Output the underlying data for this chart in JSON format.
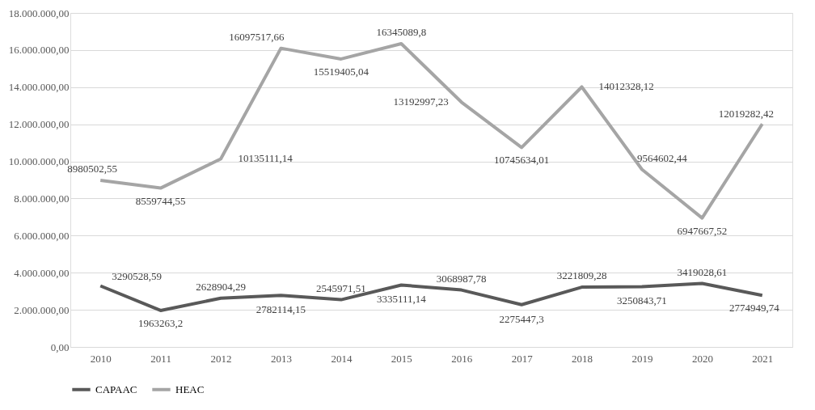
{
  "chart_data": {
    "type": "line",
    "categories": [
      "2010",
      "2011",
      "2012",
      "2013",
      "2014",
      "2015",
      "2016",
      "2017",
      "2018",
      "2019",
      "2020",
      "2021"
    ],
    "series": [
      {
        "name": "CAPAAC",
        "color": "#595959",
        "values": [
          3290528.59,
          1963263.2,
          2628904.29,
          2782114.15,
          2545971.51,
          3335111.14,
          3068987.78,
          2275447.3,
          3221809.28,
          3250843.71,
          3419028.61,
          2774949.74
        ],
        "value_labels": [
          "3290528,59",
          "1963263,2",
          "2628904,29",
          "2782114,15",
          "2545971,51",
          "3335111,14",
          "3068987,78",
          "2275447,3",
          "3221809,28",
          "3250843,71",
          "3419028,61",
          "2774949,74"
        ]
      },
      {
        "name": "HEAC",
        "color": "#a5a5a5",
        "values": [
          8980502.55,
          8559744.55,
          10135111.14,
          16097517.66,
          15519405.04,
          16345089.8,
          13192997.23,
          10745634.01,
          14012328.12,
          9564602.44,
          6947667.52,
          12019282.42
        ],
        "value_labels": [
          "8980502,55",
          "8559744,55",
          "10135111,14",
          "16097517,66",
          "15519405,04",
          "16345089,8",
          "13192997,23",
          "10745634,01",
          "14012328,12",
          "9564602,44",
          "6947667,52",
          "12019282,42"
        ]
      }
    ],
    "ylim": [
      0,
      18000000
    ],
    "yticks": [
      {
        "value": 0,
        "label": "0,00"
      },
      {
        "value": 2000000,
        "label": "2.000.000,00"
      },
      {
        "value": 4000000,
        "label": "4.000.000,00"
      },
      {
        "value": 6000000,
        "label": "6.000.000,00"
      },
      {
        "value": 8000000,
        "label": "8.000.000,00"
      },
      {
        "value": 10000000,
        "label": "10.000.000,00"
      },
      {
        "value": 12000000,
        "label": "12.000.000,00"
      },
      {
        "value": 14000000,
        "label": "14.000.000,00"
      },
      {
        "value": 16000000,
        "label": "16.000.000,00"
      },
      {
        "value": 18000000,
        "label": "18.000.000,00"
      }
    ],
    "grid": "y",
    "legend": "bottom",
    "marker": "none",
    "line_style": "solid"
  }
}
